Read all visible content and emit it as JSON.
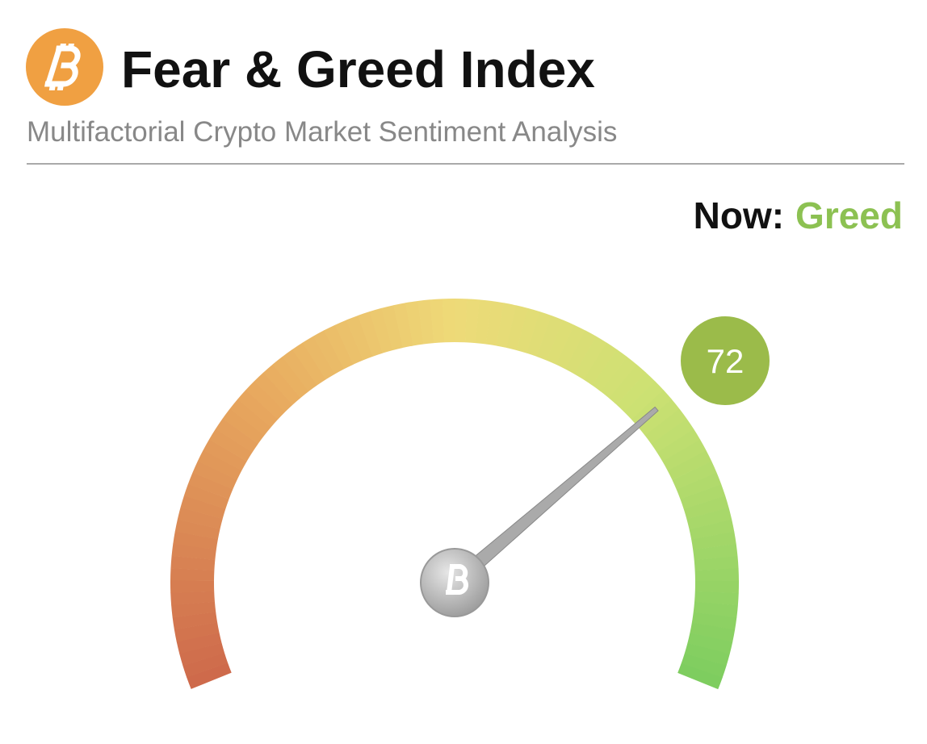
{
  "chart_data": {
    "type": "gauge",
    "title": "Fear & Greed Index",
    "subtitle": "Multifactorial Crypto Market Sentiment Analysis",
    "status_label": "Now:",
    "status": "Greed",
    "status_color": "#8cc152",
    "value": 72,
    "color": "#9bbb4a",
    "ylim": [
      0,
      100
    ]
  }
}
